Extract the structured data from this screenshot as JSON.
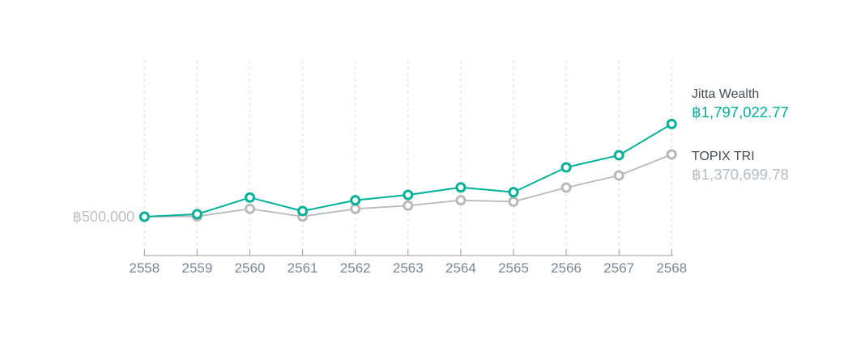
{
  "chart_data": {
    "type": "line",
    "title": "",
    "xlabel": "",
    "ylabel": "",
    "categories": [
      "2558",
      "2559",
      "2560",
      "2561",
      "2562",
      "2563",
      "2564",
      "2565",
      "2566",
      "2567",
      "2568"
    ],
    "series": [
      {
        "name": "Jitta Wealth",
        "color": "#00b097",
        "line_width": 2,
        "value_label": "฿1,797,022.77",
        "final_value": 1797022.77,
        "values": [
          500000,
          535000,
          768000,
          579000,
          730000,
          805000,
          910000,
          843000,
          1190000,
          1360000,
          1797022.77
        ]
      },
      {
        "name": "TOPIX TRI",
        "color": "#b9b9b9",
        "line_width": 1.8,
        "value_label": "฿1,370,699.78",
        "final_value": 1370699.78,
        "values": [
          500000,
          505000,
          610000,
          503000,
          610000,
          655000,
          730000,
          711000,
          907000,
          1077000,
          1370699.78
        ]
      }
    ],
    "y_axis": {
      "baseline_label": "฿500,000",
      "baseline_value": 500000
    },
    "grid": "vertical-dashed",
    "legend_position": "right"
  },
  "colors": {
    "accent_teal": "#00b097",
    "series_gray": "#b9b9b9",
    "grid": "#e2e2e2",
    "axis": "#9b9b9b",
    "year_label": "#7b8794",
    "baseline_label": "#bcc0c3",
    "legend_name": "#454c52",
    "legend_value_gray": "#b5bcc2"
  }
}
